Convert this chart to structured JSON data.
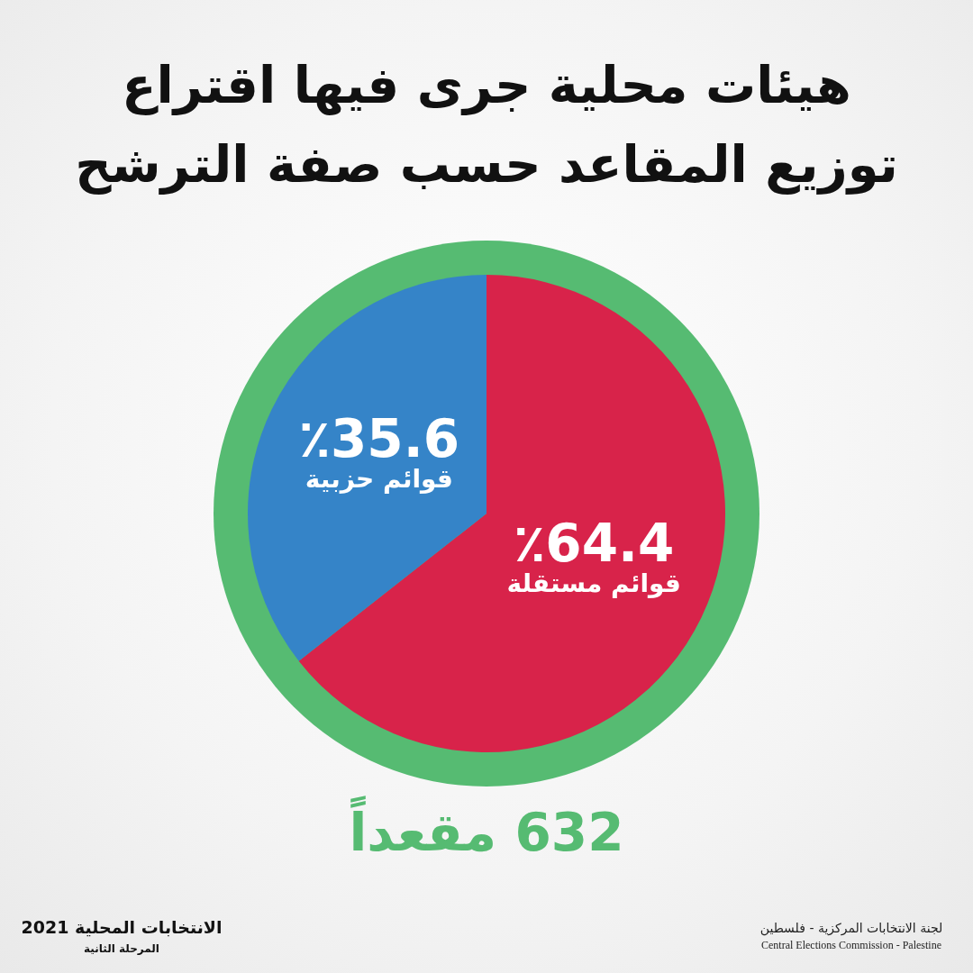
{
  "chart_data": {
    "type": "pie",
    "title": "هيئات محلية جرى فيها اقتراع",
    "subtitle": "توزيع المقاعد حسب صفة الترشح",
    "categories": [
      "قوائم مستقلة",
      "قوائم حزبية"
    ],
    "values": [
      64.4,
      35.6
    ],
    "colors": [
      "#d8234a",
      "#3584c8"
    ],
    "value_labels": [
      "٪64.4",
      "٪35.6"
    ],
    "annotations": [
      "632 مقعداً",
      "الانتخابات المحلية 2021",
      "المرحلة الثانية",
      "لجنة الانتخابات المركزية - فلسطين",
      "Central Elections Commission - Palestine"
    ],
    "legend": false
  }
}
